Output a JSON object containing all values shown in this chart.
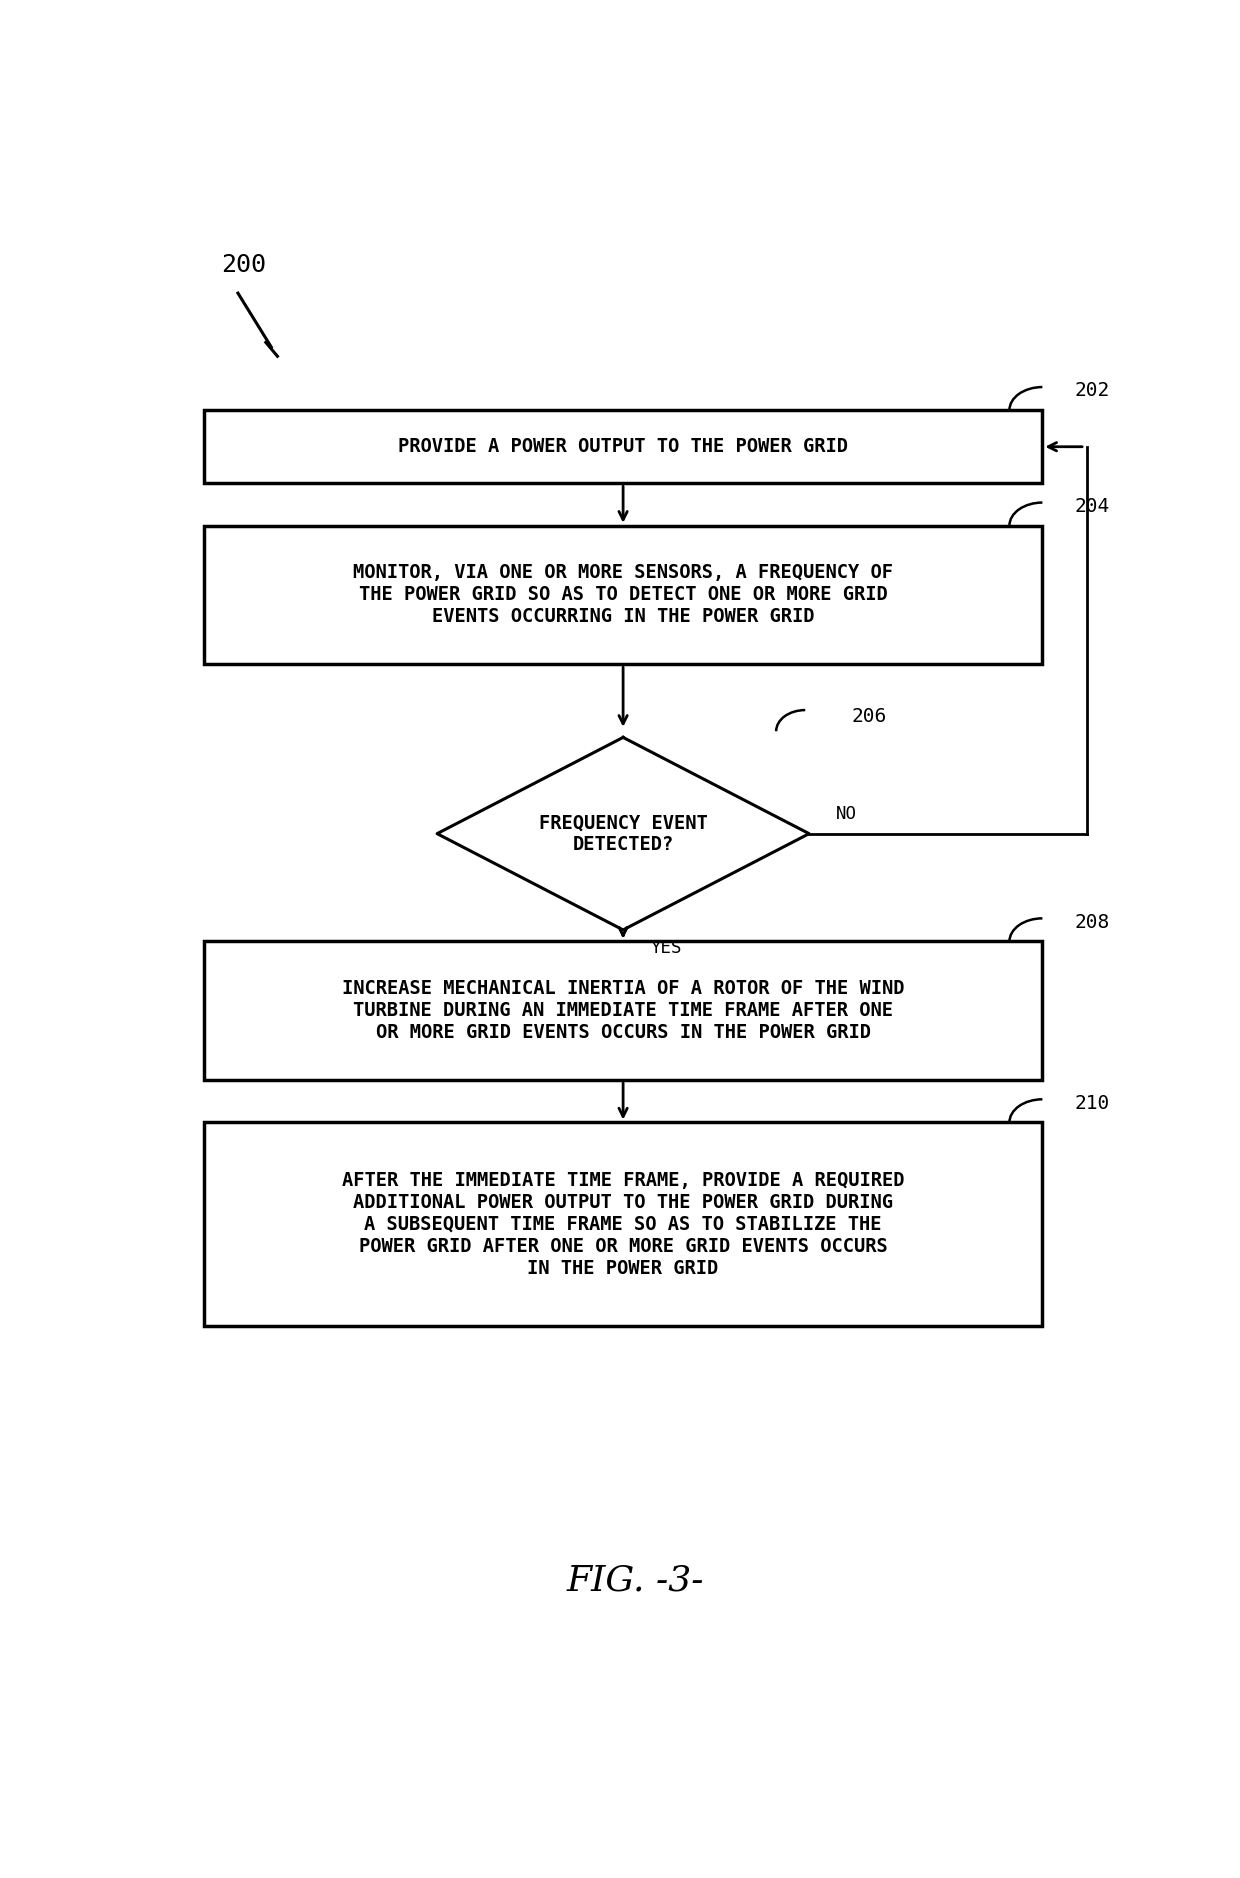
{
  "bg_color": "#ffffff",
  "line_color": "#000000",
  "text_color": "#000000",
  "figure_label": "200",
  "node_202_label": "PROVIDE A POWER OUTPUT TO THE POWER GRID",
  "node_202_ref": "202",
  "node_204_label": "MONITOR, VIA ONE OR MORE SENSORS, A FREQUENCY OF\nTHE POWER GRID SO AS TO DETECT ONE OR MORE GRID\nEVENTS OCCURRING IN THE POWER GRID",
  "node_204_ref": "204",
  "node_206_label": "FREQUENCY EVENT\nDETECTED?",
  "node_206_ref": "206",
  "node_208_label": "INCREASE MECHANICAL INERTIA OF A ROTOR OF THE WIND\nTURBINE DURING AN IMMEDIATE TIME FRAME AFTER ONE\nOR MORE GRID EVENTS OCCURS IN THE POWER GRID",
  "node_208_ref": "208",
  "node_210_label": "AFTER THE IMMEDIATE TIME FRAME, PROVIDE A REQUIRED\nADDITIONAL POWER OUTPUT TO THE POWER GRID DURING\nA SUBSEQUENT TIME FRAME SO AS TO STABILIZE THE\nPOWER GRID AFTER ONE OR MORE GRID EVENTS OCCURS\nIN THE POWER GRID",
  "node_210_ref": "210",
  "yes_label": "YES",
  "no_label": "NO",
  "fig_caption": "FIG. -3-",
  "font_size_box": 13.5,
  "font_size_ref": 14,
  "font_size_caption": 26
}
